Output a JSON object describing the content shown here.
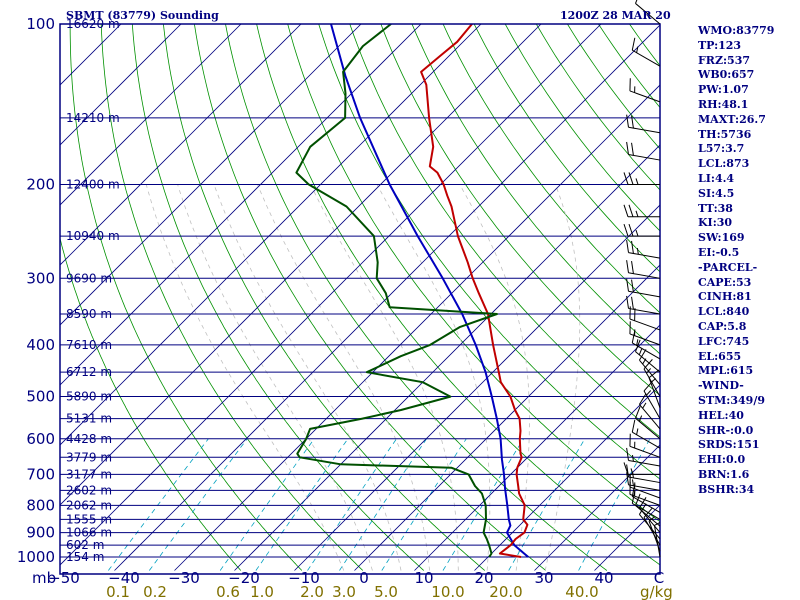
{
  "header": {
    "station": "SBMT (83779) Sounding",
    "datetime": "1200Z 28 MAR 20"
  },
  "indices": [
    "WMO:83779",
    "TP:123",
    "FRZ:537",
    "WB0:657",
    "PW:1.07",
    "RH:48.1",
    "MAXT:26.7",
    "TH:5736",
    "L57:3.7",
    "LCL:873",
    "LI:4.4",
    "SI:4.5",
    "TT:38",
    "KI:30",
    "SW:169",
    "EI:-0.5",
    "-PARCEL-",
    "CAPE:53",
    "CINH:81",
    "LCL:840",
    "CAP:5.8",
    "LFC:745",
    "EL:655",
    "MPL:615",
    "-WIND-",
    "STM:349/9",
    "HEL:40",
    "SHR-:0.0",
    "SRDS:151",
    "EHI:0.0",
    "BRN:1.6",
    "BSHR:34"
  ],
  "colors": {
    "frame": "#000080",
    "isobar": "#000080",
    "isotherm": "#000080",
    "dry_adiabat": "#009000",
    "moist_adiabat": "#c0c0c0",
    "mixing_ratio": "#00a0c0",
    "temperature": "#c00000",
    "dewpoint": "#005000",
    "parcel": "#0000c0",
    "wind_barb": "#000000"
  },
  "chart_data": {
    "type": "line",
    "subtype": "skew-T log-P sounding",
    "pressure_levels_mb": [
      100,
      150,
      200,
      250,
      300,
      350,
      400,
      450,
      500,
      550,
      600,
      650,
      700,
      750,
      800,
      850,
      900,
      950,
      1000
    ],
    "pressure_tick_labels": [
      "100",
      "200",
      "300",
      "400",
      "500",
      "600",
      "700",
      "800",
      "900",
      "1000"
    ],
    "height_labels": [
      {
        "p": 100,
        "label": "16620 m"
      },
      {
        "p": 150,
        "label": "14210 m"
      },
      {
        "p": 200,
        "label": "12400 m"
      },
      {
        "p": 250,
        "label": "10940 m"
      },
      {
        "p": 300,
        "label": "9690 m"
      },
      {
        "p": 350,
        "label": "8590 m"
      },
      {
        "p": 400,
        "label": "7610 m"
      },
      {
        "p": 450,
        "label": "6712 m"
      },
      {
        "p": 500,
        "label": "5890 m"
      },
      {
        "p": 550,
        "label": "5131 m"
      },
      {
        "p": 600,
        "label": "4428 m"
      },
      {
        "p": 650,
        "label": "3779 m"
      },
      {
        "p": 700,
        "label": "3177 m"
      },
      {
        "p": 750,
        "label": "2602 m"
      },
      {
        "p": 800,
        "label": "2062 m"
      },
      {
        "p": 850,
        "label": "1555 m"
      },
      {
        "p": 900,
        "label": "1066 m"
      },
      {
        "p": 950,
        "label": "602 m"
      },
      {
        "p": 1000,
        "label": "154 m"
      }
    ],
    "y_unit_label": "mb",
    "temperature_ticks": [
      -50,
      -40,
      -30,
      -20,
      -10,
      0,
      10,
      20,
      30,
      40
    ],
    "temperature_tick_labels": [
      "−50",
      "−40",
      "−30",
      "−20",
      "−10",
      "0",
      "10",
      "20",
      "30",
      "40"
    ],
    "temperature_unit_label": "C",
    "mixing_ratio_labels": [
      "0.1",
      "0.2",
      "0.6",
      "1.0",
      "2.0",
      "3.0",
      "5.0",
      "10.0",
      "20.0",
      "40.0"
    ],
    "mixing_ratio_unit": "g/kg",
    "isotherm_ticks": [
      -150,
      -140,
      -130,
      -120,
      -110,
      -100,
      -90,
      -80,
      -70,
      -60,
      -50,
      -40,
      -30,
      -20,
      -10,
      0,
      10,
      20,
      30,
      40
    ],
    "dry_adiabat_thetas_K": [
      250,
      260,
      270,
      280,
      290,
      300,
      310,
      320,
      330,
      340,
      350,
      360,
      370,
      380,
      390,
      400,
      410,
      420,
      430,
      440,
      450,
      460,
      470,
      480,
      490,
      500,
      520,
      540,
      560
    ],
    "mixing_ratio_lines_gkg": [
      0.1,
      0.2,
      0.6,
      1.0,
      2.0,
      3.0,
      5.0,
      10.0,
      20.0,
      40.0
    ],
    "moist_adiabat_base_C": [
      -5,
      0,
      5,
      10,
      15,
      20,
      25,
      30
    ],
    "temperature_profile": [
      {
        "p": 1000,
        "t": 25.5
      },
      {
        "p": 985,
        "t": 21.4
      },
      {
        "p": 950,
        "t": 21.8
      },
      {
        "p": 925,
        "t": 21.6
      },
      {
        "p": 900,
        "t": 22.0
      },
      {
        "p": 870,
        "t": 21.2
      },
      {
        "p": 850,
        "t": 19.6
      },
      {
        "p": 800,
        "t": 17.5
      },
      {
        "p": 760,
        "t": 14.6
      },
      {
        "p": 736,
        "t": 13.2
      },
      {
        "p": 700,
        "t": 11.0
      },
      {
        "p": 680,
        "t": 10.0
      },
      {
        "p": 650,
        "t": 9.0
      },
      {
        "p": 640,
        "t": 8.2
      },
      {
        "p": 600,
        "t": 5.6
      },
      {
        "p": 580,
        "t": 4.4
      },
      {
        "p": 550,
        "t": 2.2
      },
      {
        "p": 530,
        "t": 0.0
      },
      {
        "p": 500,
        "t": -3.0
      },
      {
        "p": 470,
        "t": -7.0
      },
      {
        "p": 450,
        "t": -9.0
      },
      {
        "p": 400,
        "t": -14.5
      },
      {
        "p": 370,
        "t": -18.0
      },
      {
        "p": 350,
        "t": -20.5
      },
      {
        "p": 320,
        "t": -25.5
      },
      {
        "p": 300,
        "t": -29.0
      },
      {
        "p": 280,
        "t": -32.5
      },
      {
        "p": 250,
        "t": -38.5
      },
      {
        "p": 220,
        "t": -44.5
      },
      {
        "p": 210,
        "t": -47.0
      },
      {
        "p": 200,
        "t": -49.5
      },
      {
        "p": 190,
        "t": -52.5
      },
      {
        "p": 185,
        "t": -54.8
      },
      {
        "p": 170,
        "t": -57.5
      },
      {
        "p": 150,
        "t": -63.0
      },
      {
        "p": 130,
        "t": -69.0
      },
      {
        "p": 123,
        "t": -72.0
      },
      {
        "p": 115,
        "t": -71.5
      },
      {
        "p": 108,
        "t": -71.0
      },
      {
        "p": 100,
        "t": -71.5
      }
    ],
    "dewpoint_profile": [
      {
        "p": 1000,
        "t": 20.2
      },
      {
        "p": 985,
        "t": 20.0
      },
      {
        "p": 950,
        "t": 18.2
      },
      {
        "p": 925,
        "t": 16.8
      },
      {
        "p": 900,
        "t": 15.2
      },
      {
        "p": 850,
        "t": 13.4
      },
      {
        "p": 800,
        "t": 11.0
      },
      {
        "p": 760,
        "t": 8.4
      },
      {
        "p": 736,
        "t": 6.0
      },
      {
        "p": 700,
        "t": 3.0
      },
      {
        "p": 680,
        "t": -1.0
      },
      {
        "p": 670,
        "t": -20.0
      },
      {
        "p": 650,
        "t": -28.0
      },
      {
        "p": 640,
        "t": -29.0
      },
      {
        "p": 600,
        "t": -30.0
      },
      {
        "p": 575,
        "t": -31.0
      },
      {
        "p": 550,
        "t": -24.0
      },
      {
        "p": 530,
        "t": -19.0
      },
      {
        "p": 500,
        "t": -13.0
      },
      {
        "p": 470,
        "t": -20.0
      },
      {
        "p": 450,
        "t": -31.0
      },
      {
        "p": 420,
        "t": -28.0
      },
      {
        "p": 400,
        "t": -25.0
      },
      {
        "p": 370,
        "t": -23.0
      },
      {
        "p": 350,
        "t": -19.0
      },
      {
        "p": 340,
        "t": -38.0
      },
      {
        "p": 320,
        "t": -41.0
      },
      {
        "p": 300,
        "t": -45.0
      },
      {
        "p": 280,
        "t": -47.5
      },
      {
        "p": 250,
        "t": -52.5
      },
      {
        "p": 220,
        "t": -62.0
      },
      {
        "p": 200,
        "t": -72.0
      },
      {
        "p": 190,
        "t": -76.0
      },
      {
        "p": 170,
        "t": -78.0
      },
      {
        "p": 150,
        "t": -77.0
      },
      {
        "p": 135,
        "t": -81.0
      },
      {
        "p": 123,
        "t": -85.0
      },
      {
        "p": 110,
        "t": -86.0
      },
      {
        "p": 100,
        "t": -85.0
      }
    ],
    "parcel_profile": [
      {
        "p": 1000,
        "t": 26.7
      },
      {
        "p": 950,
        "t": 22.4
      },
      {
        "p": 900,
        "t": 19.1
      },
      {
        "p": 873,
        "t": 18.5
      },
      {
        "p": 850,
        "t": 17.2
      },
      {
        "p": 800,
        "t": 14.6
      },
      {
        "p": 745,
        "t": 11.5
      },
      {
        "p": 700,
        "t": 8.9
      },
      {
        "p": 655,
        "t": 6.0
      },
      {
        "p": 600,
        "t": 2.4
      },
      {
        "p": 550,
        "t": -1.6
      },
      {
        "p": 500,
        "t": -6.1
      },
      {
        "p": 450,
        "t": -11.2
      },
      {
        "p": 400,
        "t": -17.4
      },
      {
        "p": 350,
        "t": -24.8
      },
      {
        "p": 300,
        "t": -34.0
      },
      {
        "p": 250,
        "t": -45.2
      },
      {
        "p": 200,
        "t": -58.5
      },
      {
        "p": 150,
        "t": -74.5
      },
      {
        "p": 125,
        "t": -84.0
      },
      {
        "p": 100,
        "t": -95.0
      }
    ],
    "wind_barbs": [
      {
        "p": 1000,
        "dir": 350,
        "spd": 5
      },
      {
        "p": 975,
        "dir": 340,
        "spd": 5
      },
      {
        "p": 950,
        "dir": 330,
        "spd": 10
      },
      {
        "p": 925,
        "dir": 320,
        "spd": 10
      },
      {
        "p": 900,
        "dir": 320,
        "spd": 10
      },
      {
        "p": 875,
        "dir": 310,
        "spd": 10
      },
      {
        "p": 850,
        "dir": 300,
        "spd": 10
      },
      {
        "p": 825,
        "dir": 300,
        "spd": 10
      },
      {
        "p": 800,
        "dir": 290,
        "spd": 15
      },
      {
        "p": 775,
        "dir": 290,
        "spd": 15
      },
      {
        "p": 750,
        "dir": 280,
        "spd": 15
      },
      {
        "p": 725,
        "dir": 280,
        "spd": 15
      },
      {
        "p": 700,
        "dir": 270,
        "spd": 15
      },
      {
        "p": 675,
        "dir": 280,
        "spd": 15
      },
      {
        "p": 650,
        "dir": 290,
        "spd": 15
      },
      {
        "p": 625,
        "dir": 300,
        "spd": 15
      },
      {
        "p": 600,
        "dir": 310,
        "spd": 15
      },
      {
        "p": 575,
        "dir": 320,
        "spd": 15
      },
      {
        "p": 550,
        "dir": 330,
        "spd": 15
      },
      {
        "p": 525,
        "dir": 340,
        "spd": 15
      },
      {
        "p": 500,
        "dir": 330,
        "spd": 15
      },
      {
        "p": 475,
        "dir": 320,
        "spd": 15
      },
      {
        "p": 450,
        "dir": 310,
        "spd": 15
      },
      {
        "p": 425,
        "dir": 300,
        "spd": 15
      },
      {
        "p": 400,
        "dir": 290,
        "spd": 15
      },
      {
        "p": 375,
        "dir": 290,
        "spd": 20
      },
      {
        "p": 350,
        "dir": 280,
        "spd": 20
      },
      {
        "p": 325,
        "dir": 280,
        "spd": 20
      },
      {
        "p": 300,
        "dir": 280,
        "spd": 20
      },
      {
        "p": 275,
        "dir": 280,
        "spd": 25
      },
      {
        "p": 250,
        "dir": 270,
        "spd": 25
      },
      {
        "p": 230,
        "dir": 270,
        "spd": 25
      },
      {
        "p": 200,
        "dir": 270,
        "spd": 25
      },
      {
        "p": 180,
        "dir": 280,
        "spd": 20
      },
      {
        "p": 160,
        "dir": 280,
        "spd": 20
      },
      {
        "p": 140,
        "dir": 290,
        "spd": 15
      },
      {
        "p": 120,
        "dir": 300,
        "spd": 15
      },
      {
        "p": 100,
        "dir": 310,
        "spd": 10
      }
    ],
    "ylim_mb": [
      1050,
      100
    ],
    "xlim_C": [
      -50,
      50
    ],
    "skew": "45deg",
    "yscale": "log",
    "grid": true
  }
}
